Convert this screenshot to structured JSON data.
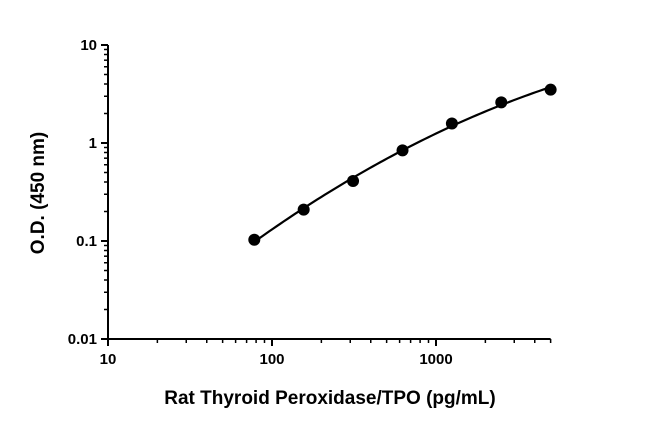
{
  "chart_data": {
    "type": "scatter",
    "title": "",
    "xlabel": "Rat Thyroid Peroxidase/TPO (pg/mL)",
    "ylabel": "O.D. (450 nm)",
    "x_scale": "log",
    "y_scale": "log",
    "xlim": [
      10,
      5000
    ],
    "ylim": [
      0.01,
      10
    ],
    "x_ticks": [
      10,
      100,
      1000
    ],
    "x_tick_labels": [
      "10",
      "100",
      "1000"
    ],
    "y_ticks": [
      0.01,
      0.1,
      1,
      10
    ],
    "y_tick_labels": [
      "0.01",
      "0.1",
      "1",
      "10"
    ],
    "grid": false,
    "legend": "none",
    "fit_curve": true,
    "color": "#000000",
    "series": [
      {
        "x": [
          78,
          156,
          312,
          625,
          1250,
          2500,
          5000
        ],
        "y": [
          0.103,
          0.209,
          0.41,
          0.84,
          1.58,
          2.6,
          3.5
        ]
      }
    ]
  }
}
